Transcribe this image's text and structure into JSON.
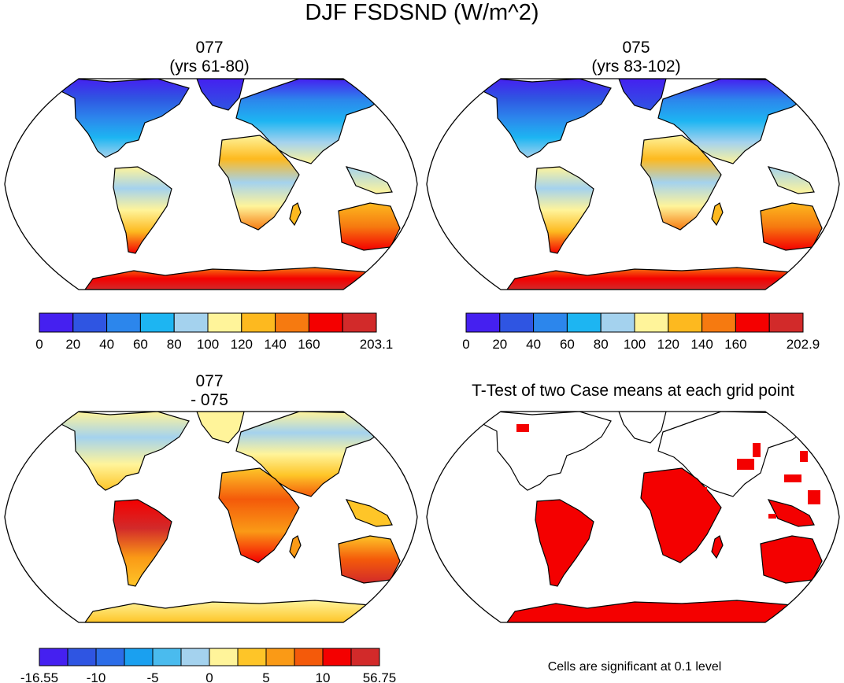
{
  "title": "DJF FSDSND (W/m^2)",
  "panels": [
    {
      "id": "case1",
      "title_line1": "077",
      "title_line2": "(yrs 61-80)"
    },
    {
      "id": "case2",
      "title_line1": "075",
      "title_line2": "(yrs 83-102)"
    },
    {
      "id": "diff",
      "title_line1": "077",
      "title_line2": "- 075"
    },
    {
      "id": "ttest",
      "title_line1": "T-Test of two Case means at each grid point",
      "note": "Cells are significant at 0.1 level"
    }
  ],
  "colorbars": [
    {
      "id": "cb-case1",
      "colors": [
        "#4520f0",
        "#2f55e2",
        "#2c86ec",
        "#1db5f2",
        "#a4d2ee",
        "#fff49a",
        "#fdb91f",
        "#f67a10",
        "#f40000",
        "#d22a2a"
      ],
      "labels": [
        "0",
        "20",
        "40",
        "60",
        "80",
        "100",
        "120",
        "140",
        "160",
        "",
        "203.1"
      ]
    },
    {
      "id": "cb-case2",
      "colors": [
        "#4520f0",
        "#2f55e2",
        "#2c86ec",
        "#1db5f2",
        "#a4d2ee",
        "#fff49a",
        "#fdb91f",
        "#f67a10",
        "#f40000",
        "#d22a2a"
      ],
      "labels": [
        "0",
        "20",
        "40",
        "60",
        "80",
        "100",
        "120",
        "140",
        "160",
        "",
        "202.9"
      ]
    },
    {
      "id": "cb-diff",
      "colors": [
        "#4520f0",
        "#2f55e2",
        "#2c6de8",
        "#1aa0f0",
        "#4abbee",
        "#a4d2ee",
        "#fff49a",
        "#fec528",
        "#fa9a16",
        "#f45a0a",
        "#f40000",
        "#d22a2a"
      ],
      "labels": [
        "-16.55",
        "",
        "-10",
        "",
        "-5",
        "",
        "0",
        "",
        "5",
        "",
        "10",
        "",
        "56.75"
      ]
    }
  ],
  "chart_data": [
    {
      "type": "heatmap",
      "title": "077 (yrs 61-80)",
      "variable": "FSDSND",
      "units": "W/m^2",
      "season": "DJF",
      "levels": [
        0,
        20,
        40,
        60,
        80,
        100,
        120,
        140,
        160,
        "203.1"
      ],
      "range": [
        0,
        203.1
      ],
      "projection": "robinson"
    },
    {
      "type": "heatmap",
      "title": "075 (yrs 83-102)",
      "variable": "FSDSND",
      "units": "W/m^2",
      "season": "DJF",
      "levels": [
        0,
        20,
        40,
        60,
        80,
        100,
        120,
        140,
        160,
        "202.9"
      ],
      "range": [
        0,
        202.9
      ],
      "projection": "robinson"
    },
    {
      "type": "heatmap",
      "title": "077 - 075",
      "variable": "FSDSND",
      "units": "W/m^2",
      "season": "DJF",
      "tick_labels": [
        "-16.55",
        "-10",
        "-5",
        "0",
        "5",
        "10",
        "56.75"
      ],
      "range": [
        -16.55,
        56.75
      ],
      "projection": "robinson"
    },
    {
      "type": "heatmap",
      "title": "T-Test of two Case means at each grid point",
      "annotation": "Cells are significant at 0.1 level",
      "significance_level": 0.1,
      "projection": "robinson"
    }
  ]
}
